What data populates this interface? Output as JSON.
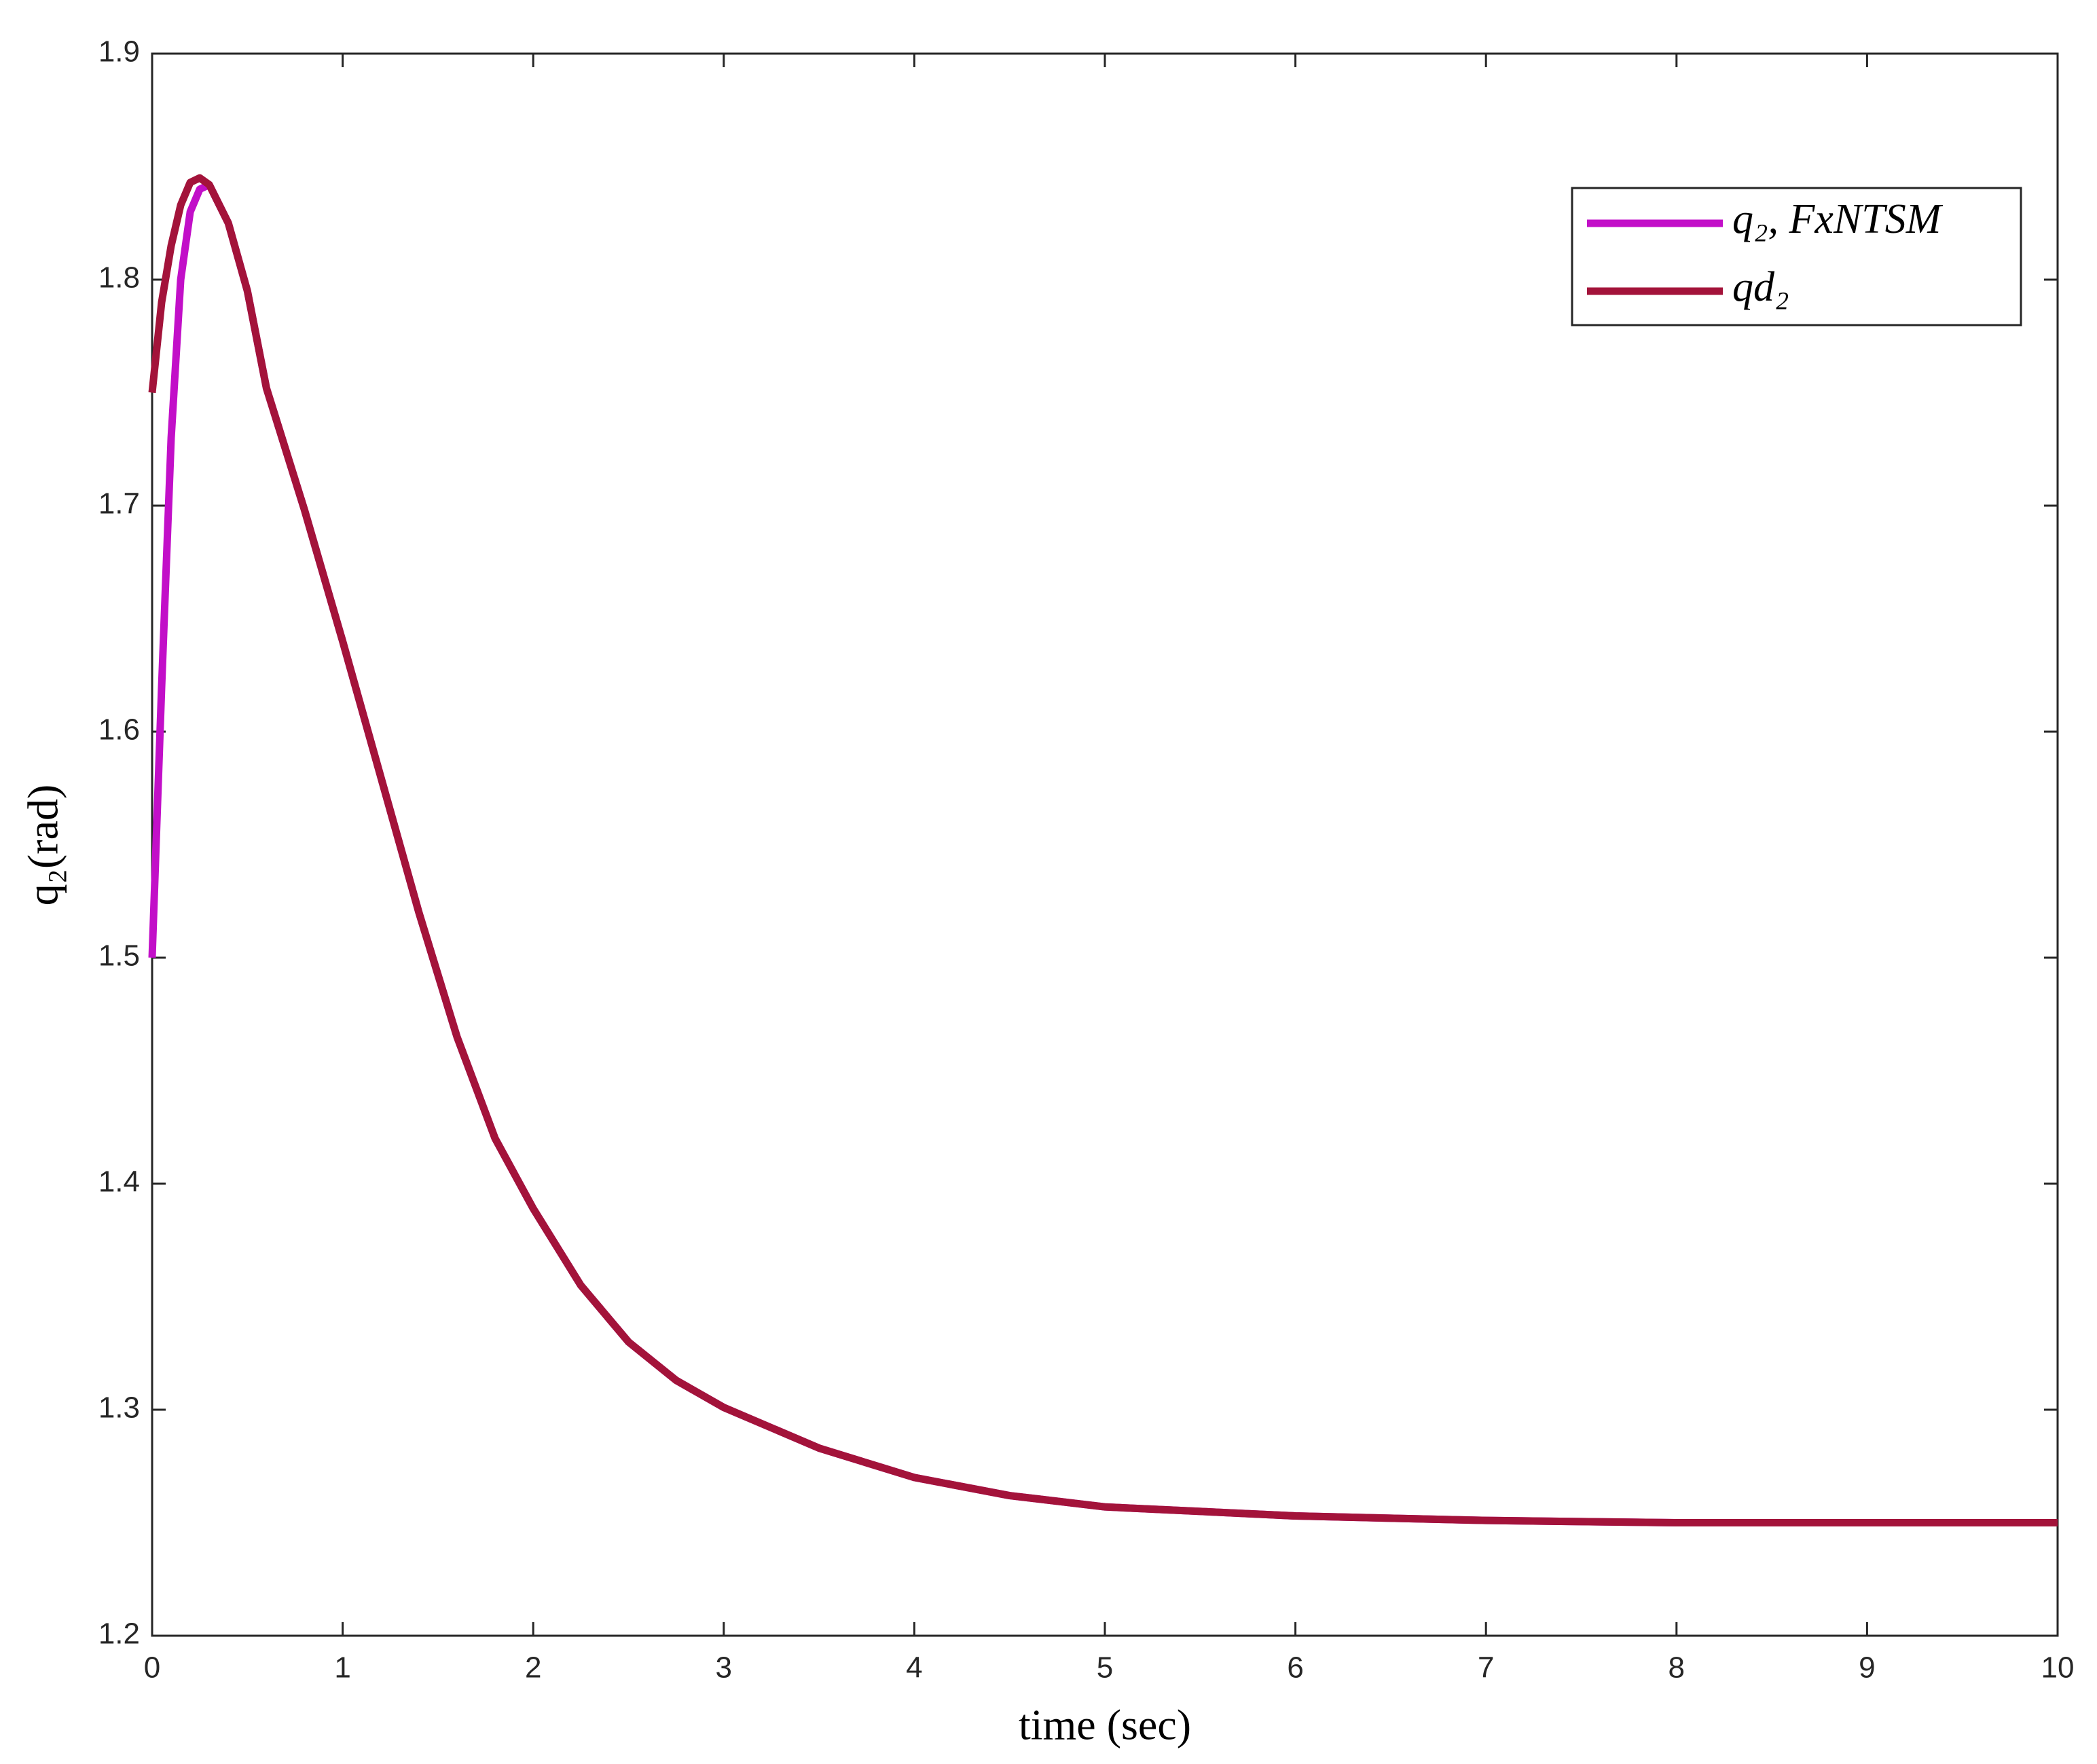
{
  "chart_data": {
    "type": "line",
    "xlabel": "time (sec)",
    "ylabel": "q₂(rad)",
    "x": [
      0,
      0.05,
      0.1,
      0.15,
      0.2,
      0.25,
      0.3,
      0.4,
      0.5,
      0.6,
      0.8,
      1.0,
      1.2,
      1.4,
      1.6,
      1.8,
      2.0,
      2.25,
      2.5,
      2.75,
      3,
      3.5,
      4,
      4.5,
      5,
      6,
      7,
      8,
      9,
      10
    ],
    "series": [
      {
        "name": "q₂, FxNTSM",
        "color": "#c20fc8",
        "values": [
          1.5,
          1.62,
          1.73,
          1.8,
          1.83,
          1.84,
          1.842,
          1.825,
          1.795,
          1.752,
          1.698,
          1.64,
          1.58,
          1.52,
          1.465,
          1.42,
          1.389,
          1.355,
          1.33,
          1.313,
          1.301,
          1.283,
          1.27,
          1.262,
          1.257,
          1.253,
          1.251,
          1.25,
          1.25,
          1.25
        ]
      },
      {
        "name": "qd₂",
        "color": "#a3133a",
        "values": [
          1.75,
          1.79,
          1.815,
          1.833,
          1.843,
          1.845,
          1.842,
          1.825,
          1.795,
          1.752,
          1.698,
          1.64,
          1.58,
          1.52,
          1.465,
          1.42,
          1.389,
          1.355,
          1.33,
          1.313,
          1.301,
          1.283,
          1.27,
          1.262,
          1.257,
          1.253,
          1.251,
          1.25,
          1.25,
          1.25
        ]
      }
    ],
    "xlim": [
      0,
      10
    ],
    "xticks": [
      0,
      1,
      2,
      3,
      4,
      5,
      6,
      7,
      8,
      9,
      10
    ],
    "ylim": [
      1.2,
      1.9
    ],
    "yticks": [
      1.2,
      1.3,
      1.4,
      1.5,
      1.6,
      1.7,
      1.8,
      1.9
    ],
    "legend": "upper right"
  }
}
